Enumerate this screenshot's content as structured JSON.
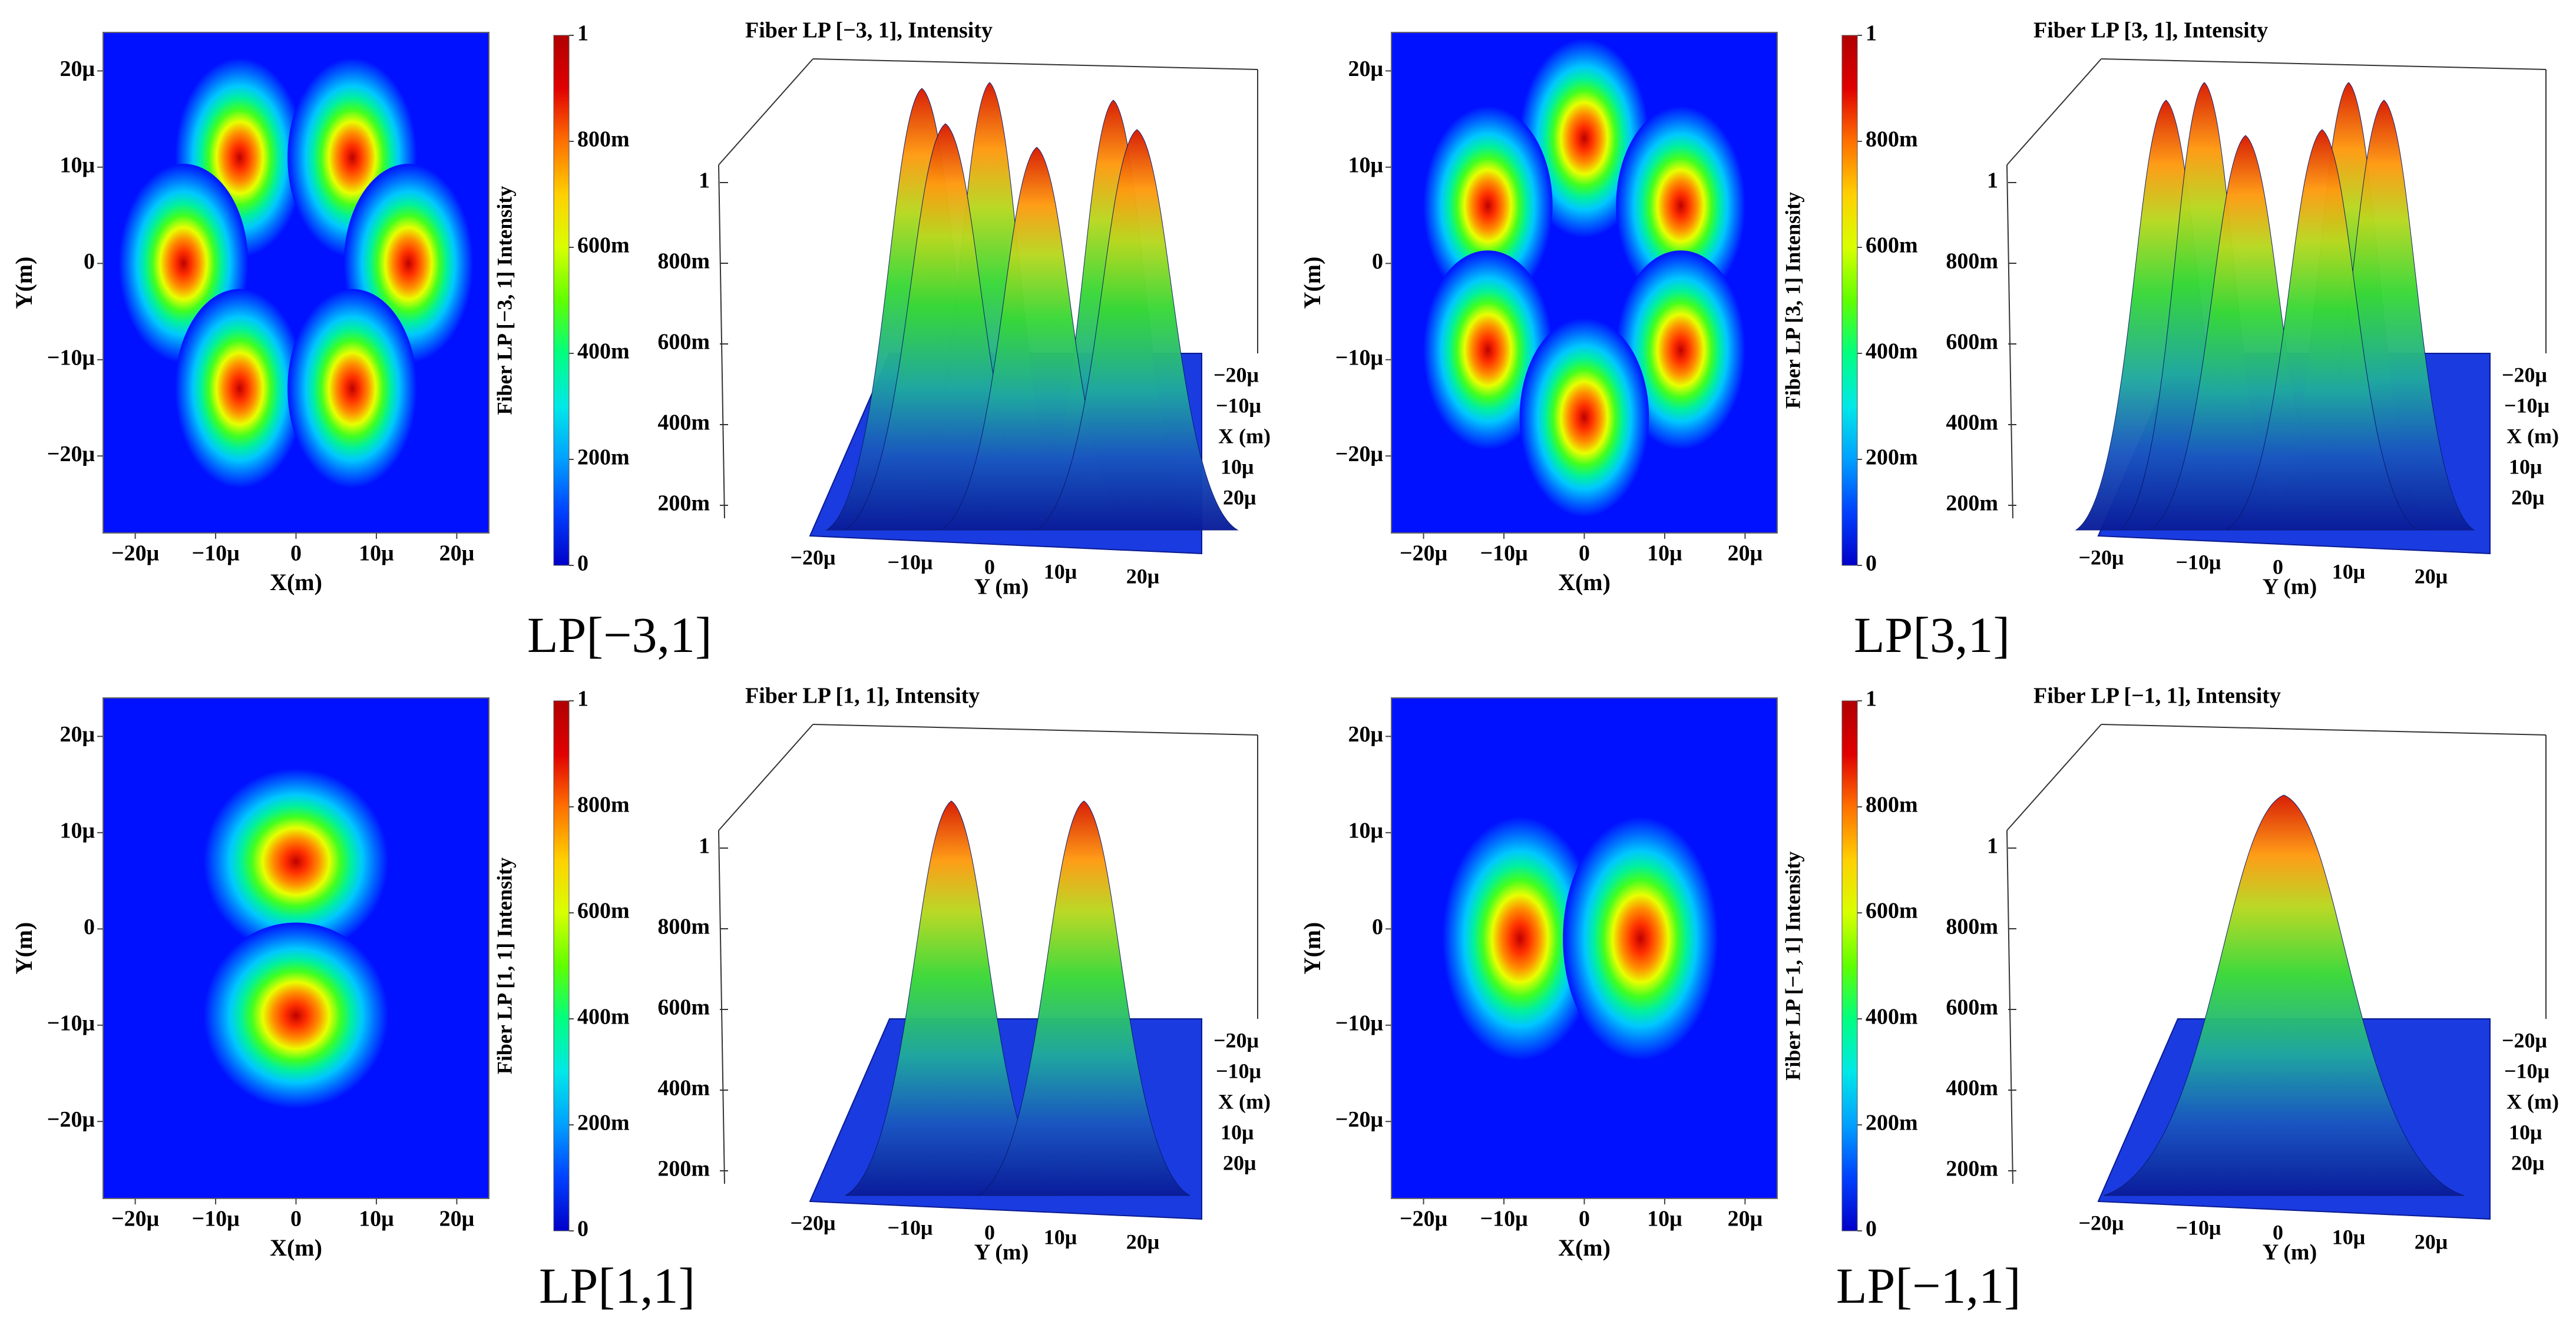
{
  "colors": {
    "background": "#0011ff",
    "scale": [
      "#0000c8",
      "#0040ff",
      "#00a0ff",
      "#00e8e8",
      "#00ff80",
      "#60ff00",
      "#d8ff00",
      "#ffd000",
      "#ff7000",
      "#e00000",
      "#b00000"
    ]
  },
  "chart_data": [
    {
      "id": "lp_m3_1",
      "caption": "LP[−3,1]",
      "heatmap": {
        "type": "heatmap",
        "xlabel": "X(m)",
        "ylabel": "Y(m)",
        "xticks": [
          "−20μ",
          "−10μ",
          "0",
          "10μ",
          "20μ"
        ],
        "yticks": [
          "20μ",
          "10μ",
          "0",
          "−10μ",
          "−20μ"
        ],
        "xlim": [
          -24,
          24
        ],
        "ylim": [
          -28,
          24
        ],
        "lobes": [
          [
            -7,
            11
          ],
          [
            7,
            11
          ],
          [
            -14,
            0
          ],
          [
            14,
            0
          ],
          [
            -7,
            -13
          ],
          [
            7,
            -13
          ]
        ],
        "lobe_sigma": [
          3.5,
          4.5
        ]
      },
      "colorbar": {
        "label": "Fiber LP [−3, 1] Intensity",
        "ticks": [
          "1",
          "800m",
          "600m",
          "400m",
          "200m",
          "0"
        ],
        "range": [
          0,
          1
        ]
      },
      "surface": {
        "type": "area",
        "title": "Fiber LP [−3, 1], Intensity",
        "zticks": [
          "1",
          "800m",
          "600m",
          "400m",
          "200m"
        ],
        "x_axis_label": "X (m)",
        "x_axis_ticks": [
          "−20μ",
          "−10μ",
          "X (m)",
          "10μ",
          "20μ"
        ],
        "y_axis_label": "Y (m)",
        "y_axis_ticks": [
          "−20μ",
          "−10μ",
          "0",
          "10μ",
          "20μ"
        ],
        "peaks": 6,
        "peak_value": 1
      }
    },
    {
      "id": "lp_p3_1",
      "caption": "LP[3,1]",
      "heatmap": {
        "type": "heatmap",
        "xlabel": "X(m)",
        "ylabel": "Y(m)",
        "xticks": [
          "−20μ",
          "−10μ",
          "0",
          "10μ",
          "20μ"
        ],
        "yticks": [
          "20μ",
          "10μ",
          "0",
          "−10μ",
          "−20μ"
        ],
        "xlim": [
          -24,
          24
        ],
        "ylim": [
          -28,
          24
        ],
        "lobes": [
          [
            0,
            13
          ],
          [
            -12,
            6
          ],
          [
            12,
            6
          ],
          [
            -12,
            -9
          ],
          [
            12,
            -9
          ],
          [
            0,
            -16
          ]
        ],
        "lobe_sigma": [
          3.5,
          4.5
        ]
      },
      "colorbar": {
        "label": "Fiber LP [3, 1] Intensity",
        "ticks": [
          "1",
          "800m",
          "600m",
          "400m",
          "200m",
          "0"
        ],
        "range": [
          0,
          1
        ]
      },
      "surface": {
        "type": "area",
        "title": "Fiber LP [3, 1], Intensity",
        "zticks": [
          "1",
          "800m",
          "600m",
          "400m",
          "200m"
        ],
        "x_axis_label": "X (m)",
        "x_axis_ticks": [
          "−20μ",
          "−10μ",
          "X (m)",
          "10μ",
          "20μ"
        ],
        "y_axis_label": "Y (m)",
        "y_axis_ticks": [
          "−20μ",
          "−10μ",
          "0",
          "10μ",
          "20μ"
        ],
        "peaks": 6,
        "peak_value": 1
      }
    },
    {
      "id": "lp_p1_1",
      "caption": "LP[1,1]",
      "heatmap": {
        "type": "heatmap",
        "xlabel": "X(m)",
        "ylabel": "Y(m)",
        "xticks": [
          "−20μ",
          "−10μ",
          "0",
          "10μ",
          "20μ"
        ],
        "yticks": [
          "20μ",
          "10μ",
          "0",
          "−10μ",
          "−20μ"
        ],
        "xlim": [
          -24,
          24
        ],
        "ylim": [
          -28,
          24
        ],
        "lobes": [
          [
            0,
            7
          ],
          [
            0,
            -9
          ]
        ],
        "lobe_sigma": [
          5,
          4.2
        ]
      },
      "colorbar": {
        "label": "Fiber LP [1, 1] Intensity",
        "ticks": [
          "1",
          "800m",
          "600m",
          "400m",
          "200m",
          "0"
        ],
        "range": [
          0,
          1
        ]
      },
      "surface": {
        "type": "area",
        "title": "Fiber LP [1, 1], Intensity",
        "zticks": [
          "1",
          "800m",
          "600m",
          "400m",
          "200m"
        ],
        "x_axis_label": "X (m)",
        "x_axis_ticks": [
          "−20μ",
          "−10μ",
          "X (m)",
          "10μ",
          "20μ"
        ],
        "y_axis_label": "Y (m)",
        "y_axis_ticks": [
          "−20μ",
          "−10μ",
          "0",
          "10μ",
          "20μ"
        ],
        "peaks": 2,
        "peak_value": 1
      }
    },
    {
      "id": "lp_m1_1",
      "caption": "LP[−1,1]",
      "heatmap": {
        "type": "heatmap",
        "xlabel": "X(m)",
        "ylabel": "Y(m)",
        "xticks": [
          "−20μ",
          "−10μ",
          "0",
          "10μ",
          "20μ"
        ],
        "yticks": [
          "20μ",
          "10μ",
          "0",
          "−10μ",
          "−20μ"
        ],
        "xlim": [
          -24,
          24
        ],
        "ylim": [
          -28,
          24
        ],
        "lobes": [
          [
            -8,
            -1
          ],
          [
            7,
            -1
          ]
        ],
        "lobe_sigma": [
          4.2,
          5.5
        ]
      },
      "colorbar": {
        "label": "Fiber LP [−1, 1] Intensity",
        "ticks": [
          "1",
          "800m",
          "600m",
          "400m",
          "200m",
          "0"
        ],
        "range": [
          0,
          1
        ]
      },
      "surface": {
        "type": "area",
        "title": "Fiber LP [−1, 1], Intensity",
        "zticks": [
          "1",
          "800m",
          "600m",
          "400m",
          "200m"
        ],
        "x_axis_label": "X (m)",
        "x_axis_ticks": [
          "−20μ",
          "−10μ",
          "X (m)",
          "10μ",
          "20μ"
        ],
        "y_axis_label": "Y (m)",
        "y_axis_ticks": [
          "−20μ",
          "−10μ",
          "0",
          "10μ",
          "20μ"
        ],
        "peaks": 2,
        "peak_value": 1
      }
    }
  ]
}
